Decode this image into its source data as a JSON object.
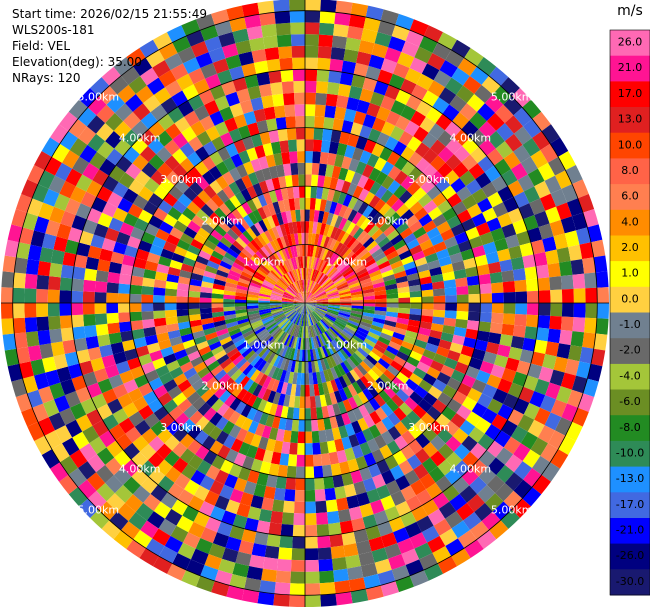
{
  "header": {
    "start_time": "Start time: 2026/02/15 21:55:49",
    "instrument": "WLS200s-181",
    "field": "Field: VEL",
    "elevation": "Elevation(deg): 35.00",
    "nrays": "NRays: 120"
  },
  "chart_data": {
    "type": "heatmap",
    "projection": "polar-ppi",
    "field": "VEL",
    "units": "m/s",
    "nrays": 120,
    "elevation_deg": 35.0,
    "range_rings_km": [
      1,
      2,
      3,
      4,
      5
    ],
    "range_ring_labels": [
      "1.00km",
      "2.00km",
      "3.00km",
      "4.00km",
      "5.00km"
    ],
    "colorbar": {
      "label": "m/s",
      "ticks": [
        "26.0",
        "21.0",
        "17.0",
        "13.0",
        "10.0",
        "8.0",
        "6.0",
        "4.0",
        "2.0",
        "1.0",
        "0.0",
        "-1.0",
        "-2.0",
        "-4.0",
        "-6.0",
        "-8.0",
        "-10.0",
        "-13.0",
        "-17.0",
        "-21.0",
        "-26.0",
        "-30.0"
      ],
      "colors": [
        "#ff69b4",
        "#ff1493",
        "#ff0000",
        "#e02020",
        "#ff4500",
        "#ff6347",
        "#ff7f50",
        "#ff8c00",
        "#ffc000",
        "#ffff00",
        "#ffd040",
        "#708090",
        "#696969",
        "#a4c639",
        "#6b8e23",
        "#228b22",
        "#2e8b57",
        "#1e90ff",
        "#4169e1",
        "#0000ff",
        "#000080",
        "#191970"
      ]
    }
  }
}
